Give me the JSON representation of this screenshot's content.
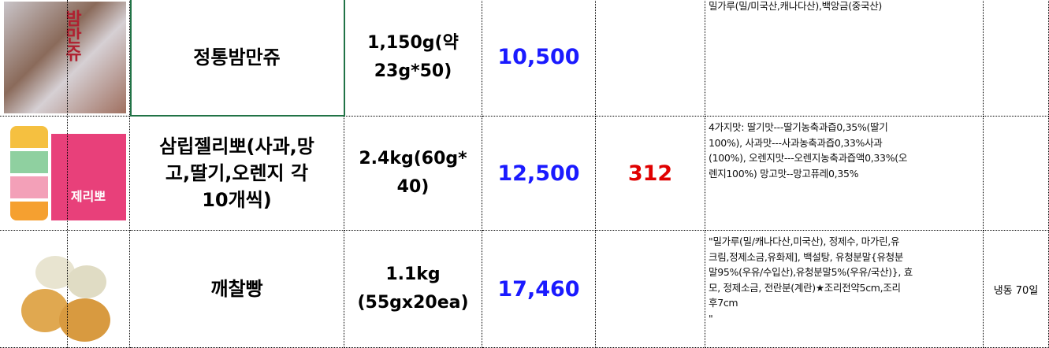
{
  "rows": [
    {
      "name_lines": [
        "정통밤만쥬"
      ],
      "weight_lines": [
        "1,150g(약",
        "23g*50)"
      ],
      "price": "10,500",
      "qty": "",
      "ingredients": [
        "밀가루(밀/미국산,캐나다산),백앙금(중국산)"
      ],
      "storage": "",
      "image": "chestnut-bun-photo",
      "image_text": "밤만쥬"
    },
    {
      "name_lines": [
        "삼립젤리뽀(사과,망",
        "고,딸기,오렌지 각",
        "10개씩)"
      ],
      "weight_lines": [
        "2.4kg(60g*",
        "40)"
      ],
      "price": "12,500",
      "qty": "312",
      "ingredients": [
        "4가지맛: 딸기맛---딸기농축과즙0,35%(딸기",
        "100%), 사과맛---사과농축과즙0,33%사과",
        "(100%), 오렌지맛---오렌지농축과즙액0,33%(오",
        "렌지100%) 망고맛--망고퓨레0,35%"
      ],
      "storage": "",
      "image": "jellypo-photo",
      "image_text": "제리뽀"
    },
    {
      "name_lines": [
        "깨찰빵"
      ],
      "weight_lines": [
        "1.1kg",
        "(55gx20ea)"
      ],
      "price": "17,460",
      "qty": "",
      "ingredients": [
        "\"밀가루(밀/캐나다산,미국산), 정제수, 마가린,유",
        "크림,정제소금,유화제], 백설탕, 유청분말{유청분",
        "말95%(우유/수입산),유청분말5%(우유/국산)}, 효",
        "모, 정제소금, 전란분(계란)★조리전약5cm,조리",
        "후7cm",
        "\""
      ],
      "storage": "냉동 70일",
      "image": "sesame-bread-photo"
    }
  ],
  "colors": {
    "price": "#1a1aff",
    "qty": "#e00000",
    "selection": "#217346"
  }
}
